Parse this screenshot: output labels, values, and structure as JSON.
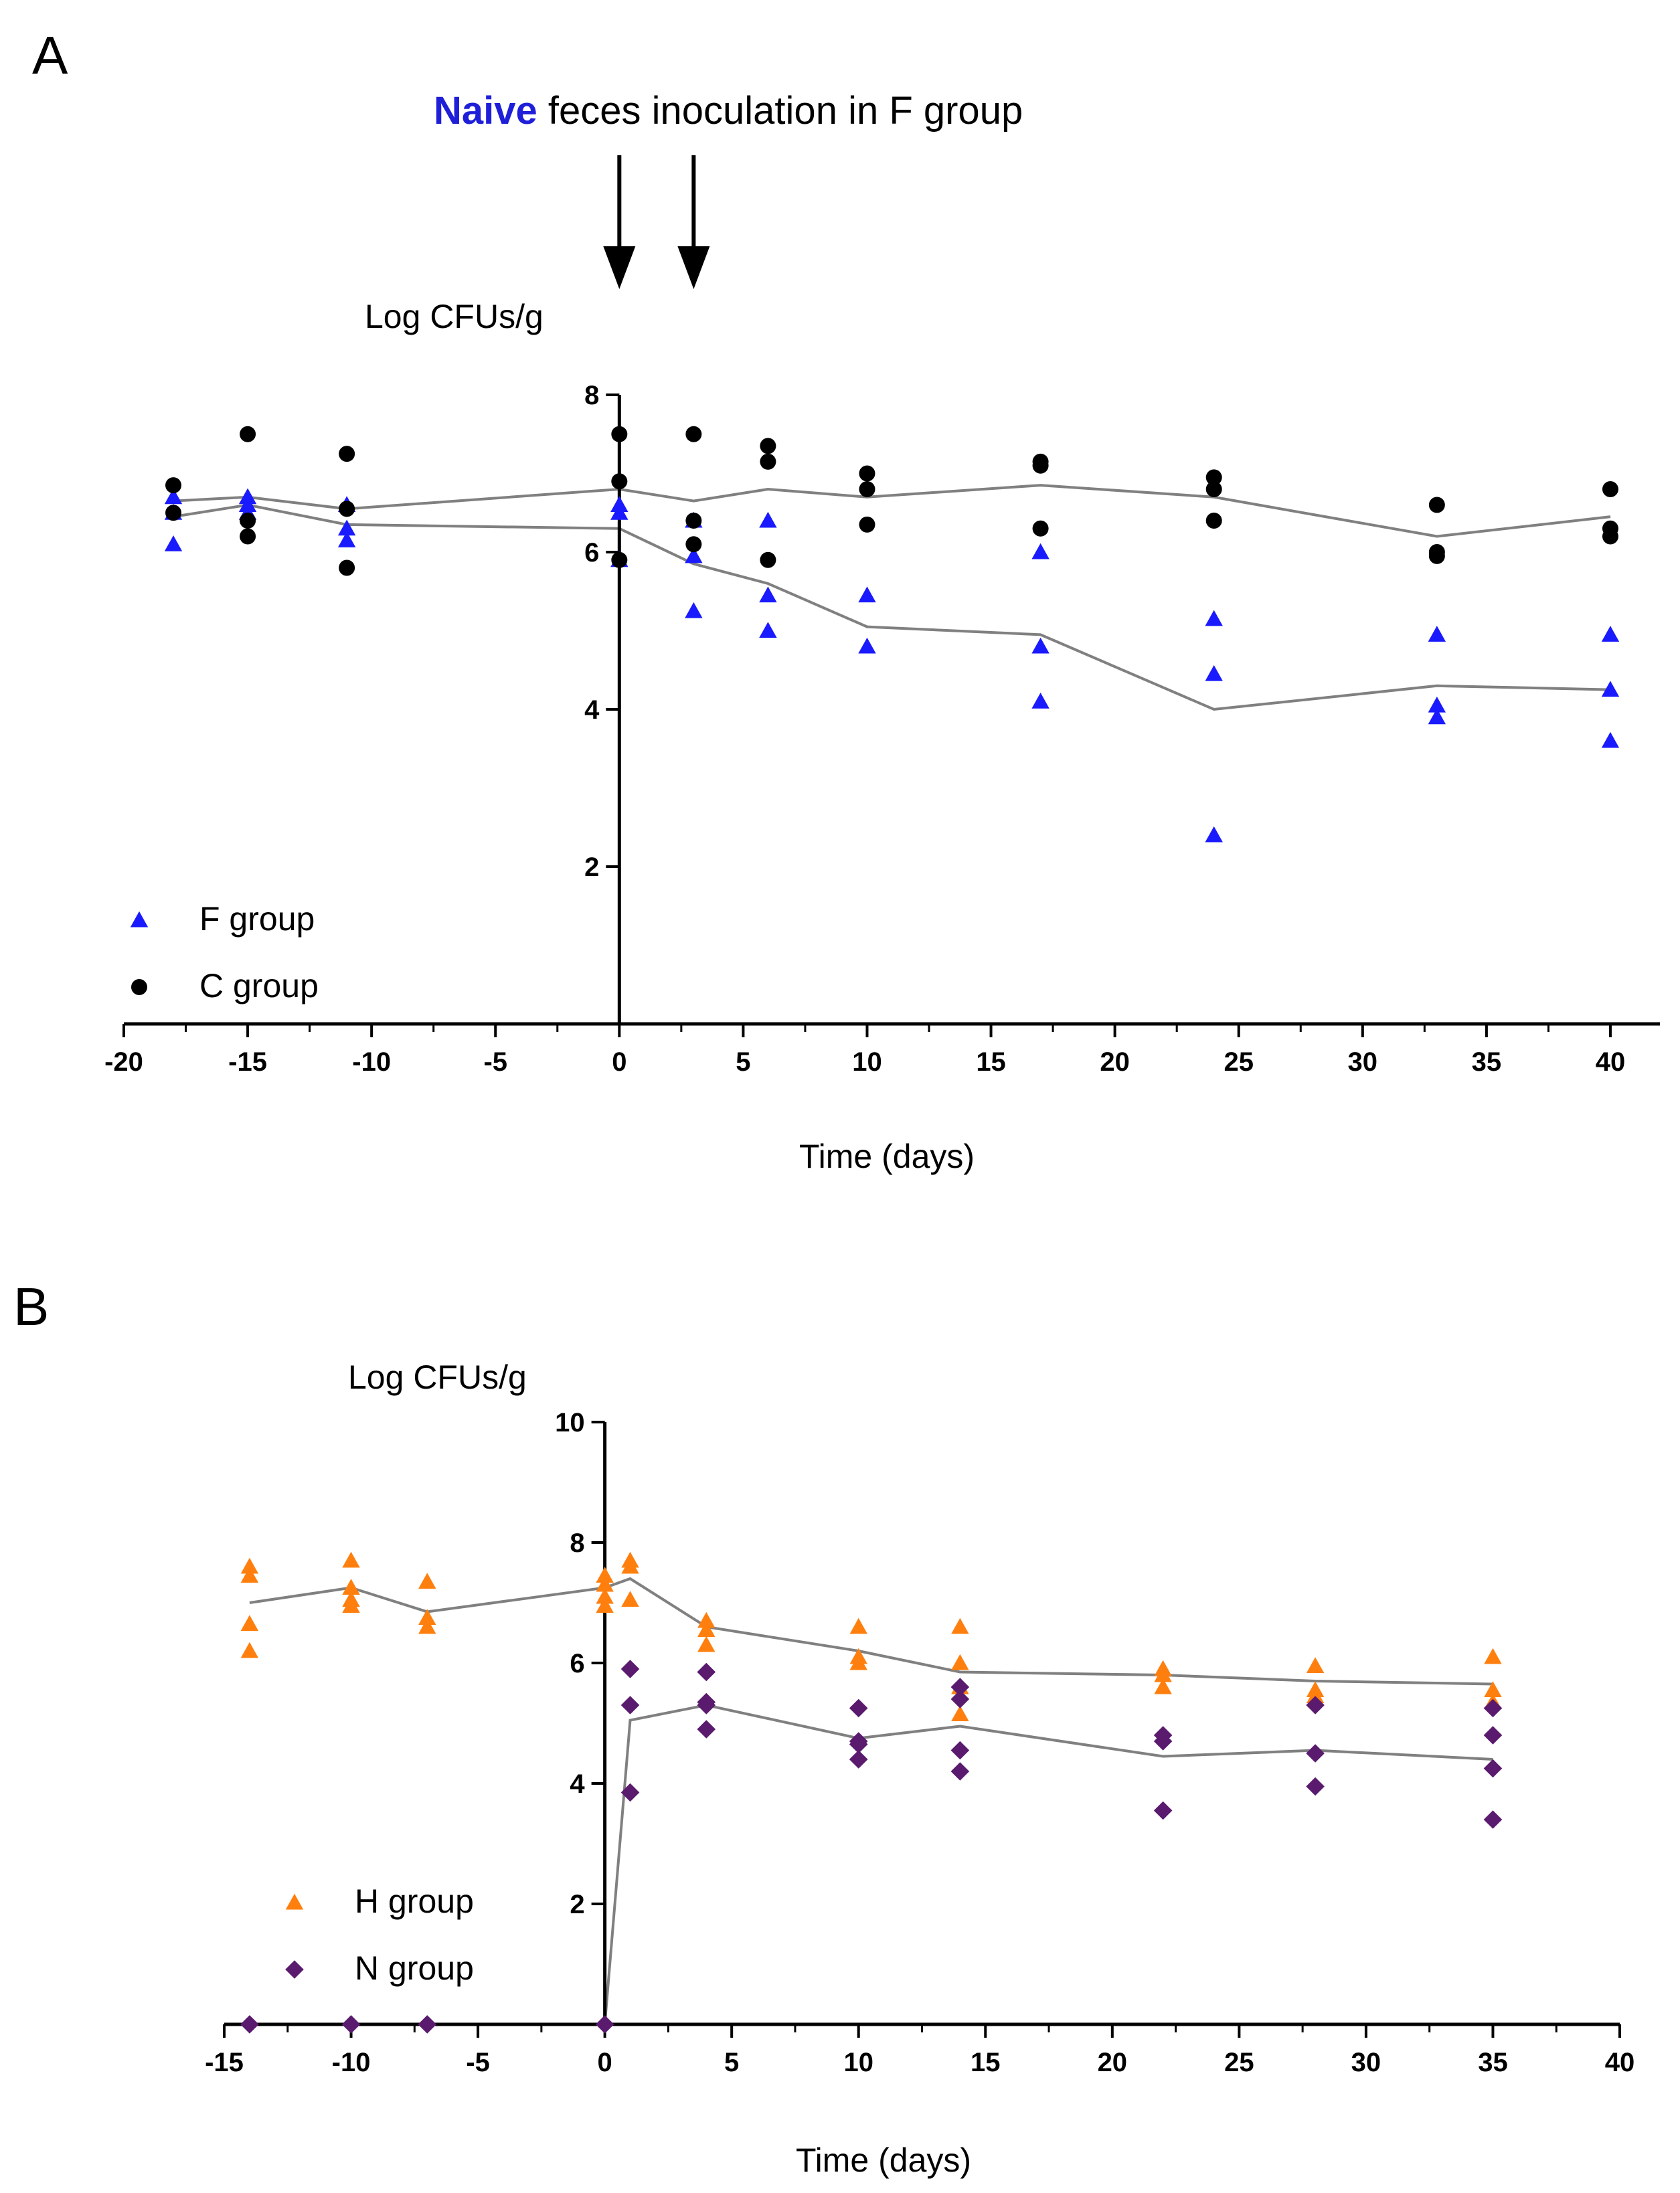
{
  "panel_a": {
    "letter": "A",
    "annotation_highlight": "Naive",
    "annotation_rest": " feces inoculation in F group"
  },
  "panel_b": {
    "letter": "B"
  },
  "colors": {
    "f_group": "#1a1aff",
    "c_group": "#000000",
    "h_group": "#ff7f0e",
    "n_group": "#5a1a6e",
    "trend_line": "#808080",
    "axis": "#000000"
  },
  "chart_data": [
    {
      "id": "A",
      "type": "scatter",
      "title": "",
      "xlabel": "Time (days)",
      "ylabel": "Log CFUs/g",
      "xlim": [
        -20,
        42
      ],
      "ylim": [
        0,
        8
      ],
      "xticks": [
        -20,
        -15,
        -10,
        -5,
        0,
        5,
        10,
        15,
        20,
        25,
        30,
        35,
        40
      ],
      "yticks": [
        2,
        4,
        6,
        8
      ],
      "arrows_at_x": [
        0,
        3
      ],
      "series": [
        {
          "name": "F group",
          "marker": "triangle",
          "color": "#1a1aff",
          "points": [
            [
              -18,
              6.1
            ],
            [
              -18,
              6.5
            ],
            [
              -18,
              6.7
            ],
            [
              -15,
              6.5
            ],
            [
              -15,
              6.6
            ],
            [
              -15,
              6.7
            ],
            [
              -11,
              6.15
            ],
            [
              -11,
              6.3
            ],
            [
              -11,
              6.6
            ],
            [
              0,
              5.9
            ],
            [
              0,
              6.5
            ],
            [
              0,
              6.6
            ],
            [
              3,
              5.25
            ],
            [
              3,
              5.95
            ],
            [
              3,
              6.4
            ],
            [
              6,
              5.0
            ],
            [
              6,
              5.45
            ],
            [
              6,
              6.4
            ],
            [
              10,
              4.8
            ],
            [
              10,
              5.45
            ],
            [
              17,
              4.1
            ],
            [
              17,
              4.8
            ],
            [
              17,
              6.0
            ],
            [
              24,
              2.4
            ],
            [
              24,
              4.45
            ],
            [
              24,
              5.15
            ],
            [
              33,
              3.9
            ],
            [
              33,
              4.05
            ],
            [
              33,
              4.95
            ],
            [
              40,
              3.6
            ],
            [
              40,
              4.25
            ],
            [
              40,
              4.95
            ]
          ],
          "trend": [
            [
              -18,
              6.45
            ],
            [
              -15,
              6.6
            ],
            [
              -11,
              6.35
            ],
            [
              0,
              6.3
            ],
            [
              3,
              5.85
            ],
            [
              6,
              5.6
            ],
            [
              10,
              5.05
            ],
            [
              17,
              4.95
            ],
            [
              24,
              4.0
            ],
            [
              33,
              4.3
            ],
            [
              40,
              4.25
            ]
          ]
        },
        {
          "name": "C group",
          "marker": "circle",
          "color": "#000000",
          "points": [
            [
              -18,
              6.5
            ],
            [
              -18,
              6.85
            ],
            [
              -15,
              6.2
            ],
            [
              -15,
              6.4
            ],
            [
              -15,
              7.5
            ],
            [
              -11,
              5.8
            ],
            [
              -11,
              6.55
            ],
            [
              -11,
              7.25
            ],
            [
              0,
              5.9
            ],
            [
              0,
              6.9
            ],
            [
              0,
              7.5
            ],
            [
              3,
              6.1
            ],
            [
              3,
              6.4
            ],
            [
              3,
              7.5
            ],
            [
              6,
              5.9
            ],
            [
              6,
              7.15
            ],
            [
              6,
              7.35
            ],
            [
              10,
              6.35
            ],
            [
              10,
              6.8
            ],
            [
              10,
              7.0
            ],
            [
              17,
              6.3
            ],
            [
              17,
              7.1
            ],
            [
              17,
              7.15
            ],
            [
              24,
              6.4
            ],
            [
              24,
              6.8
            ],
            [
              24,
              6.95
            ],
            [
              33,
              5.95
            ],
            [
              33,
              6.0
            ],
            [
              33,
              6.6
            ],
            [
              40,
              6.2
            ],
            [
              40,
              6.3
            ],
            [
              40,
              6.8
            ]
          ],
          "trend": [
            [
              -18,
              6.65
            ],
            [
              -15,
              6.7
            ],
            [
              -11,
              6.55
            ],
            [
              0,
              6.8
            ],
            [
              3,
              6.65
            ],
            [
              6,
              6.8
            ],
            [
              10,
              6.7
            ],
            [
              17,
              6.85
            ],
            [
              24,
              6.7
            ],
            [
              33,
              6.2
            ],
            [
              40,
              6.45
            ]
          ]
        }
      ]
    },
    {
      "id": "B",
      "type": "scatter",
      "title": "",
      "xlabel": "Time (days)",
      "ylabel": "Log CFUs/g",
      "xlim": [
        -15,
        40
      ],
      "ylim": [
        0,
        10
      ],
      "xticks": [
        -15,
        -10,
        -5,
        0,
        5,
        10,
        15,
        20,
        25,
        30,
        35,
        40
      ],
      "yticks": [
        2,
        4,
        6,
        8,
        10
      ],
      "series": [
        {
          "name": "H group",
          "marker": "triangle",
          "color": "#ff7f0e",
          "points": [
            [
              -14,
              6.2
            ],
            [
              -14,
              6.65
            ],
            [
              -14,
              7.45
            ],
            [
              -14,
              7.6
            ],
            [
              -10,
              6.95
            ],
            [
              -10,
              7.05
            ],
            [
              -10,
              7.25
            ],
            [
              -10,
              7.7
            ],
            [
              -7,
              6.6
            ],
            [
              -7,
              6.75
            ],
            [
              -7,
              7.35
            ],
            [
              0,
              6.95
            ],
            [
              0,
              7.1
            ],
            [
              0,
              7.3
            ],
            [
              0,
              7.45
            ],
            [
              1,
              7.05
            ],
            [
              1,
              7.6
            ],
            [
              1,
              7.7
            ],
            [
              4,
              6.3
            ],
            [
              4,
              6.55
            ],
            [
              4,
              6.7
            ],
            [
              10,
              6.0
            ],
            [
              10,
              6.1
            ],
            [
              10,
              6.6
            ],
            [
              14,
              5.15
            ],
            [
              14,
              5.6
            ],
            [
              14,
              6.0
            ],
            [
              14,
              6.6
            ],
            [
              22,
              5.6
            ],
            [
              22,
              5.8
            ],
            [
              22,
              5.9
            ],
            [
              28,
              5.45
            ],
            [
              28,
              5.55
            ],
            [
              28,
              5.95
            ],
            [
              35,
              5.35
            ],
            [
              35,
              5.55
            ],
            [
              35,
              6.1
            ]
          ],
          "trend": [
            [
              -14,
              7.0
            ],
            [
              -10,
              7.25
            ],
            [
              -7,
              6.85
            ],
            [
              0,
              7.25
            ],
            [
              1,
              7.4
            ],
            [
              4,
              6.6
            ],
            [
              10,
              6.2
            ],
            [
              14,
              5.85
            ],
            [
              22,
              5.8
            ],
            [
              28,
              5.7
            ],
            [
              35,
              5.65
            ]
          ]
        },
        {
          "name": "N  group",
          "marker": "diamond",
          "color": "#5a1a6e",
          "points": [
            [
              -14,
              0
            ],
            [
              -10,
              0
            ],
            [
              -7,
              0
            ],
            [
              0,
              0
            ],
            [
              1,
              3.85
            ],
            [
              1,
              5.3
            ],
            [
              1,
              5.9
            ],
            [
              4,
              4.9
            ],
            [
              4,
              5.3
            ],
            [
              4,
              5.35
            ],
            [
              4,
              5.85
            ],
            [
              10,
              4.4
            ],
            [
              10,
              4.65
            ],
            [
              10,
              4.7
            ],
            [
              10,
              5.25
            ],
            [
              14,
              4.2
            ],
            [
              14,
              4.55
            ],
            [
              14,
              5.4
            ],
            [
              14,
              5.6
            ],
            [
              22,
              3.55
            ],
            [
              22,
              4.7
            ],
            [
              22,
              4.8
            ],
            [
              28,
              3.95
            ],
            [
              28,
              4.5
            ],
            [
              28,
              5.3
            ],
            [
              35,
              3.4
            ],
            [
              35,
              4.25
            ],
            [
              35,
              4.8
            ],
            [
              35,
              5.25
            ]
          ],
          "trend": [
            [
              0,
              0
            ],
            [
              1,
              5.05
            ],
            [
              4,
              5.3
            ],
            [
              10,
              4.75
            ],
            [
              14,
              4.95
            ],
            [
              22,
              4.45
            ],
            [
              28,
              4.55
            ],
            [
              35,
              4.4
            ]
          ]
        }
      ]
    }
  ]
}
